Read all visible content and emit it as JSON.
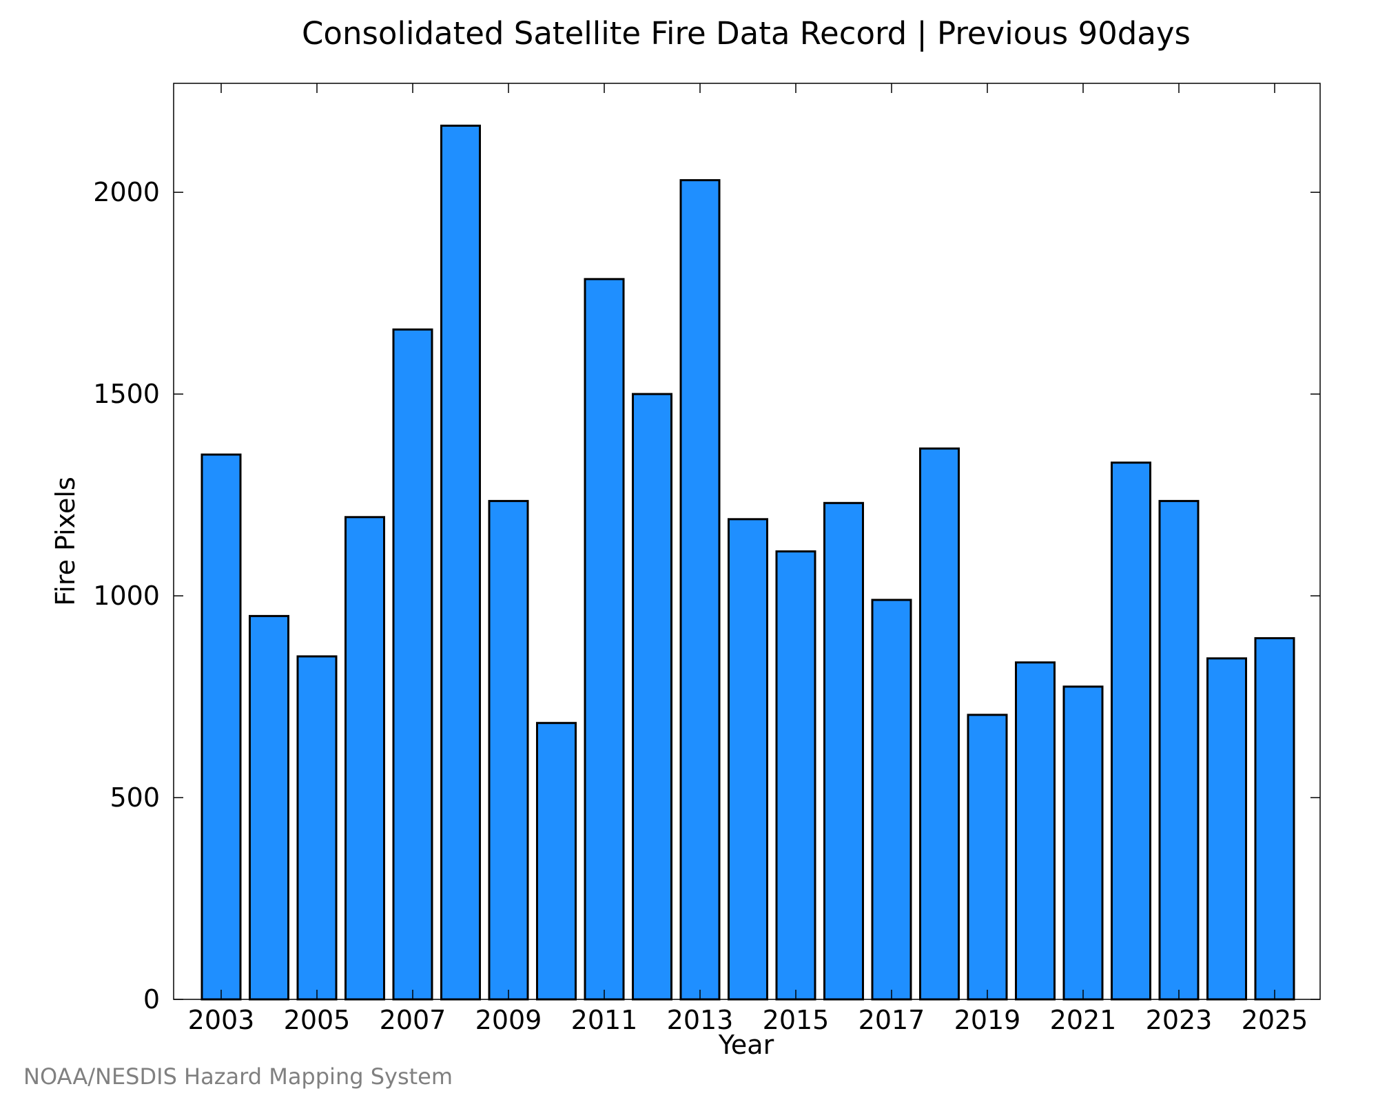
{
  "chart_data": {
    "type": "bar",
    "title": "Consolidated Satellite Fire Data Record | Previous 90days",
    "xlabel": "Year",
    "ylabel": "Fire Pixels",
    "categories": [
      "2003",
      "2004",
      "2005",
      "2006",
      "2007",
      "2008",
      "2009",
      "2010",
      "2011",
      "2012",
      "2013",
      "2014",
      "2015",
      "2016",
      "2017",
      "2018",
      "2019",
      "2020",
      "2021",
      "2022",
      "2023",
      "2024",
      "2025"
    ],
    "values": [
      1350,
      950,
      850,
      1195,
      1660,
      2165,
      1235,
      685,
      1785,
      1500,
      2030,
      1190,
      1110,
      1230,
      990,
      1365,
      705,
      835,
      775,
      1330,
      1235,
      845,
      895
    ],
    "x_tick_labels": [
      "2003",
      "2005",
      "2007",
      "2009",
      "2011",
      "2013",
      "2015",
      "2017",
      "2019",
      "2021",
      "2023",
      "2025"
    ],
    "y_ticks": [
      0,
      500,
      1000,
      1500,
      2000
    ],
    "ylim": [
      0,
      2270
    ],
    "bar_color": "#1f8fff",
    "bar_edge_color": "#000000",
    "grid": false,
    "legend": false
  },
  "credit": "NOAA/NESDIS Hazard Mapping System"
}
